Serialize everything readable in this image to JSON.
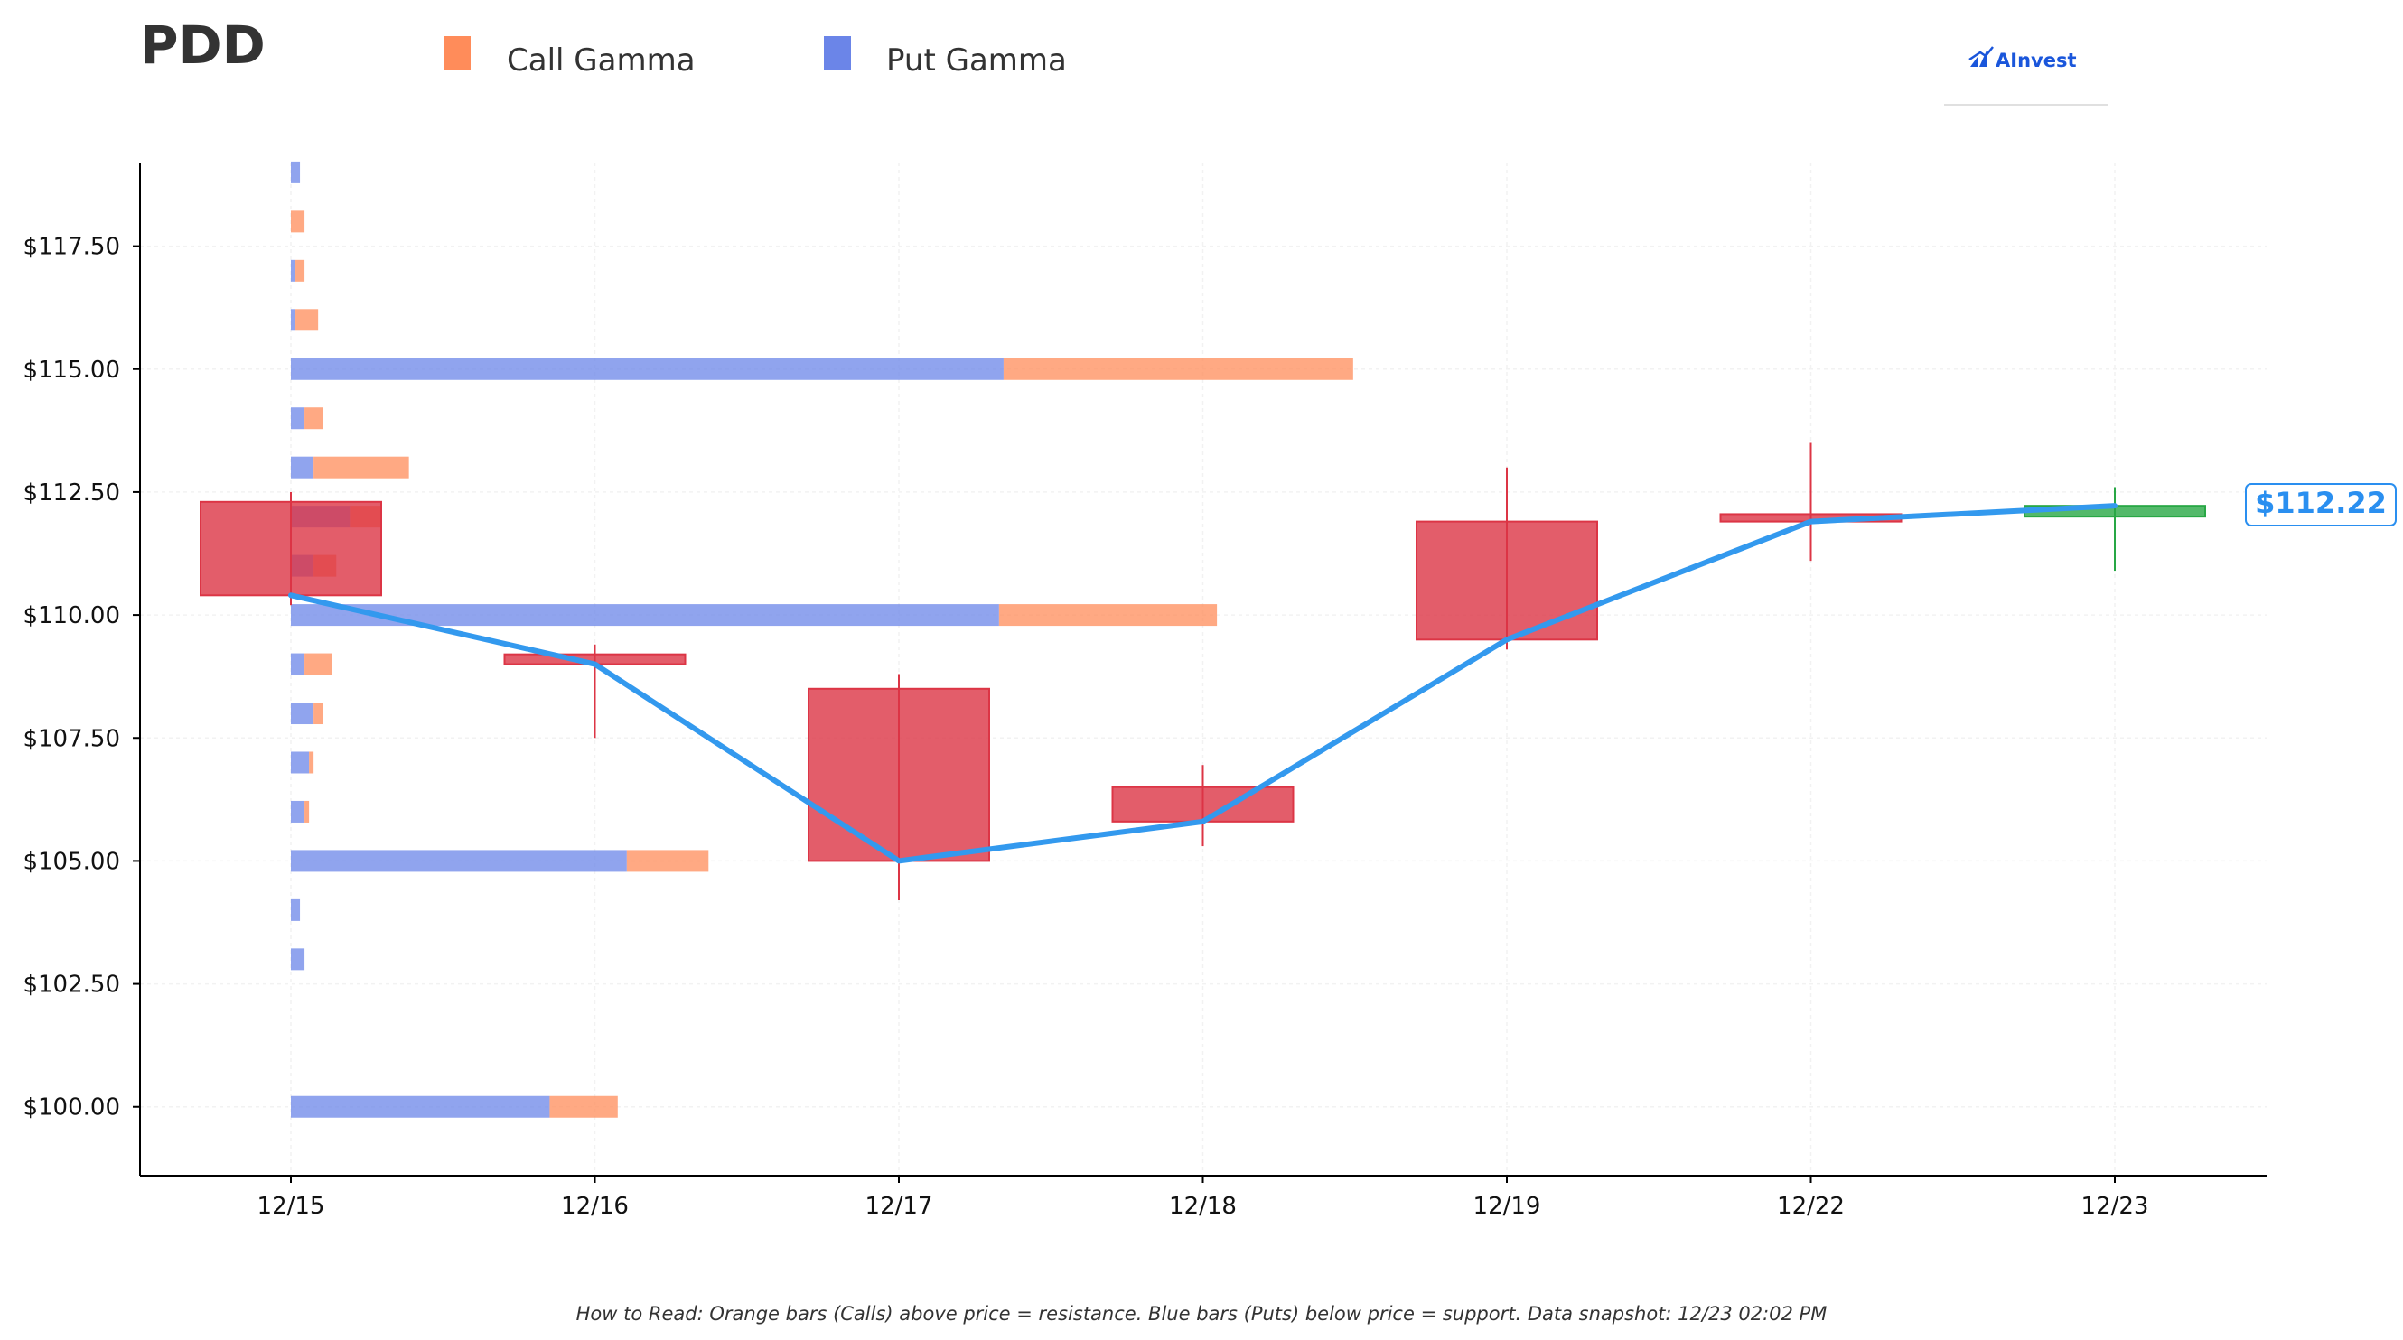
{
  "chart_data": {
    "type": "candlestick",
    "title": "PDD",
    "brand": "AInvest",
    "legend": [
      {
        "key": "call",
        "label": "Call Gamma",
        "color": "#ff8c5a"
      },
      {
        "key": "put",
        "label": "Put Gamma",
        "color": "#6b85e8"
      }
    ],
    "legend_position": "top",
    "dates": [
      "12/15",
      "12/16",
      "12/17",
      "12/18",
      "12/19",
      "12/22",
      "12/23"
    ],
    "ohlc": [
      {
        "date": "12/15",
        "open": 112.3,
        "high": 112.5,
        "low": 110.2,
        "close": 110.4
      },
      {
        "date": "12/16",
        "open": 109.2,
        "high": 109.4,
        "low": 107.5,
        "close": 109.0
      },
      {
        "date": "12/17",
        "open": 108.5,
        "high": 108.8,
        "low": 104.2,
        "close": 105.0
      },
      {
        "date": "12/18",
        "open": 106.5,
        "high": 106.95,
        "low": 105.3,
        "close": 105.8
      },
      {
        "date": "12/19",
        "open": 111.9,
        "high": 113.0,
        "low": 109.3,
        "close": 109.5
      },
      {
        "date": "12/22",
        "open": 112.05,
        "high": 113.5,
        "low": 111.1,
        "close": 111.9
      },
      {
        "date": "12/23",
        "open": 112.0,
        "high": 112.6,
        "low": 110.9,
        "close": 112.22
      }
    ],
    "close_line": [
      110.4,
      109.0,
      105.0,
      105.8,
      109.5,
      111.9,
      112.22
    ],
    "gamma": [
      {
        "strike": 119.0,
        "put": 0.1,
        "call": 0.0
      },
      {
        "strike": 118.0,
        "put": 0.0,
        "call": 0.15
      },
      {
        "strike": 117.0,
        "put": 0.05,
        "call": 0.1
      },
      {
        "strike": 116.0,
        "put": 0.05,
        "call": 0.25
      },
      {
        "strike": 115.0,
        "put": 7.85,
        "call": 3.85
      },
      {
        "strike": 114.0,
        "put": 0.15,
        "call": 0.2
      },
      {
        "strike": 113.0,
        "put": 0.25,
        "call": 1.05
      },
      {
        "strike": 112.0,
        "put": 0.65,
        "call": 0.35
      },
      {
        "strike": 111.0,
        "put": 0.25,
        "call": 0.25
      },
      {
        "strike": 110.0,
        "put": 7.8,
        "call": 2.4
      },
      {
        "strike": 109.0,
        "put": 0.15,
        "call": 0.3
      },
      {
        "strike": 108.0,
        "put": 0.25,
        "call": 0.1
      },
      {
        "strike": 107.0,
        "put": 0.2,
        "call": 0.05
      },
      {
        "strike": 106.0,
        "put": 0.15,
        "call": 0.05
      },
      {
        "strike": 105.0,
        "put": 3.7,
        "call": 0.9
      },
      {
        "strike": 104.0,
        "put": 0.1,
        "call": 0.0
      },
      {
        "strike": 103.0,
        "put": 0.15,
        "call": 0.0
      },
      {
        "strike": 100.0,
        "put": 2.85,
        "call": 0.75
      }
    ],
    "y_ticks": [
      100.0,
      102.5,
      105.0,
      107.5,
      110.0,
      112.5,
      115.0,
      117.5
    ],
    "y_tick_labels": [
      "$100.00",
      "$102.50",
      "$105.00",
      "$107.50",
      "$110.00",
      "$112.50",
      "$115.00",
      "$117.50"
    ],
    "ylim": [
      98.6,
      119.2
    ],
    "grid": true,
    "current_price_label": "$112.22",
    "colors": {
      "down": "#dc3545",
      "up": "#28a745",
      "line": "#3399ee",
      "call": "#ff8c5a",
      "put": "#6b85e8",
      "price_label": "#2a8ff0",
      "brand": "#1a56db"
    },
    "footnote": "How to Read: Orange bars (Calls) above price = resistance. Blue bars (Puts) below price = support. Data snapshot: 12/23 02:02 PM"
  }
}
